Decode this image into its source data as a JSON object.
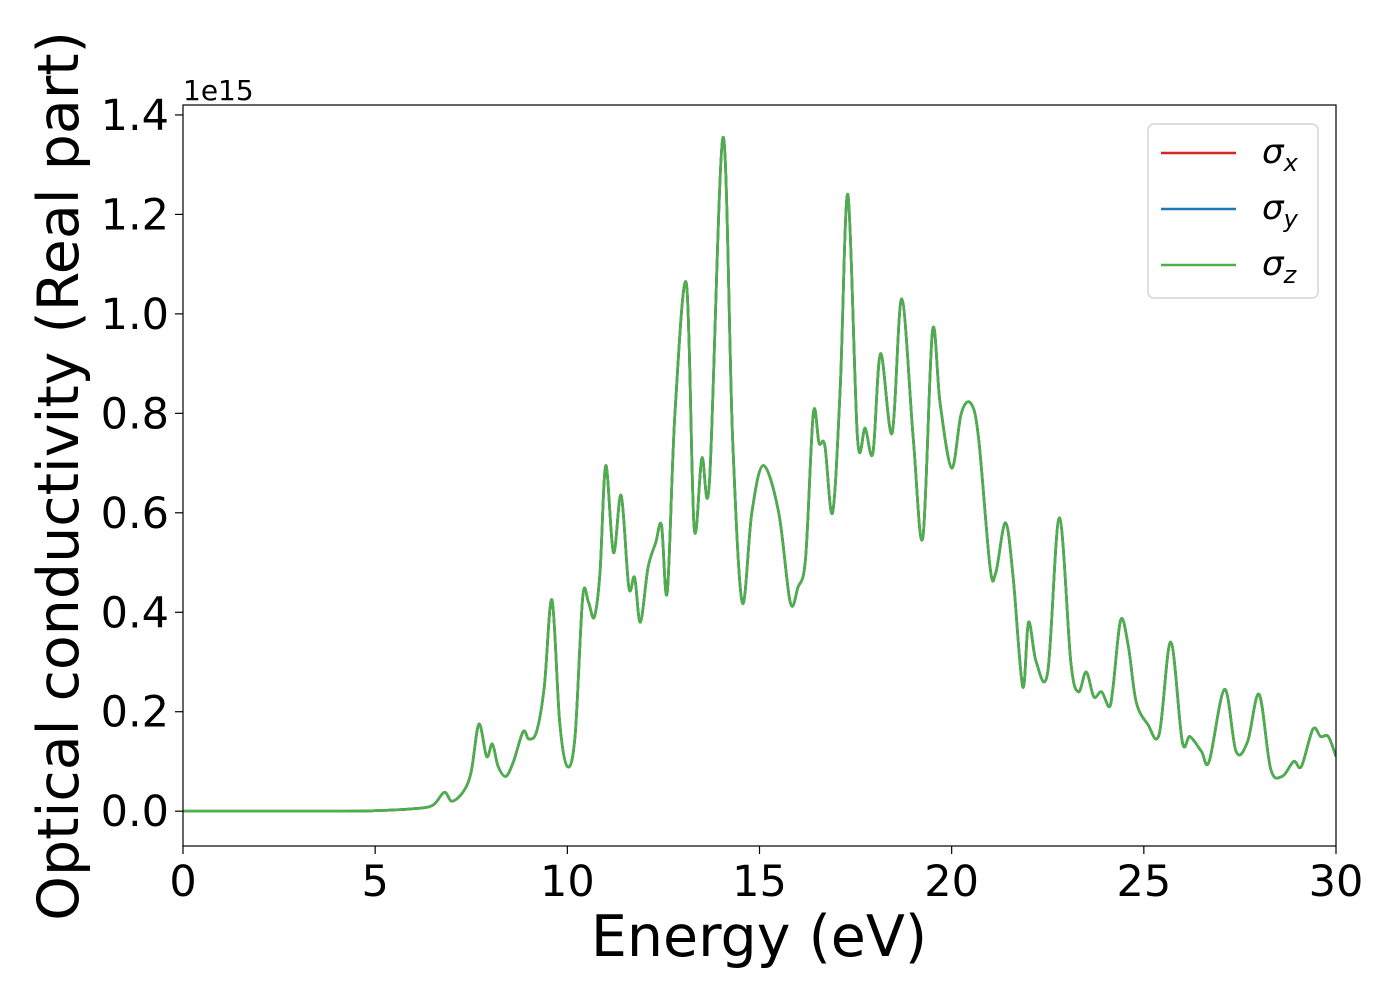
{
  "chart_data": {
    "type": "line",
    "title": "",
    "xlabel": "Energy (eV)",
    "ylabel": "Optical conductivity (Real part)",
    "offset_label": "1e15",
    "xlim": [
      0,
      30
    ],
    "ylim": [
      -0.07,
      1.42
    ],
    "xticks": [
      0,
      5,
      10,
      15,
      20,
      25,
      30
    ],
    "xtick_labels": [
      "0",
      "5",
      "10",
      "15",
      "20",
      "25",
      "30"
    ],
    "yticks": [
      0.0,
      0.2,
      0.4,
      0.6,
      0.8,
      1.0,
      1.2,
      1.4
    ],
    "ytick_labels": [
      "0.0",
      "0.2",
      "0.4",
      "0.6",
      "0.8",
      "1.0",
      "1.2",
      "1.4"
    ],
    "grid": false,
    "legend_position": "top-right",
    "x": [
      0,
      2,
      4,
      5,
      6,
      6.5,
      6.8,
      7.0,
      7.3,
      7.5,
      7.7,
      7.9,
      8.05,
      8.2,
      8.4,
      8.6,
      8.85,
      9.0,
      9.2,
      9.4,
      9.6,
      9.8,
      10.0,
      10.2,
      10.4,
      10.55,
      10.7,
      10.85,
      11.0,
      11.2,
      11.4,
      11.6,
      11.75,
      11.9,
      12.1,
      12.3,
      12.45,
      12.6,
      12.8,
      13.1,
      13.3,
      13.5,
      13.7,
      14.05,
      14.3,
      14.55,
      14.8,
      15.1,
      15.5,
      15.8,
      16.0,
      16.2,
      16.4,
      16.55,
      16.7,
      16.9,
      17.1,
      17.3,
      17.55,
      17.75,
      17.95,
      18.15,
      18.45,
      18.7,
      19.0,
      19.25,
      19.5,
      19.7,
      20.0,
      20.25,
      20.5,
      20.7,
      21.0,
      21.15,
      21.4,
      21.6,
      21.85,
      22.0,
      22.2,
      22.5,
      22.8,
      23.1,
      23.3,
      23.5,
      23.7,
      23.9,
      24.1,
      24.2,
      24.4,
      24.6,
      24.8,
      25.1,
      25.4,
      25.7,
      26.0,
      26.2,
      26.5,
      26.7,
      27.1,
      27.4,
      27.7,
      28.0,
      28.3,
      28.6,
      28.9,
      29.1,
      29.4,
      29.6,
      29.8,
      30.0
    ],
    "series": [
      {
        "name": "σ_x",
        "color": "#d62728",
        "values": [
          0,
          0,
          0,
          0.001,
          0.005,
          0.012,
          0.038,
          0.02,
          0.04,
          0.08,
          0.175,
          0.11,
          0.135,
          0.09,
          0.07,
          0.1,
          0.16,
          0.145,
          0.16,
          0.25,
          0.425,
          0.18,
          0.09,
          0.15,
          0.43,
          0.42,
          0.39,
          0.48,
          0.695,
          0.52,
          0.635,
          0.45,
          0.47,
          0.38,
          0.49,
          0.54,
          0.575,
          0.44,
          0.8,
          1.06,
          0.57,
          0.71,
          0.665,
          1.355,
          0.75,
          0.42,
          0.6,
          0.695,
          0.6,
          0.42,
          0.45,
          0.51,
          0.8,
          0.74,
          0.735,
          0.6,
          0.85,
          1.24,
          0.75,
          0.77,
          0.72,
          0.92,
          0.76,
          1.03,
          0.75,
          0.55,
          0.965,
          0.82,
          0.69,
          0.8,
          0.82,
          0.75,
          0.49,
          0.48,
          0.58,
          0.47,
          0.25,
          0.38,
          0.3,
          0.28,
          0.59,
          0.3,
          0.24,
          0.28,
          0.23,
          0.24,
          0.21,
          0.25,
          0.385,
          0.33,
          0.22,
          0.175,
          0.155,
          0.34,
          0.14,
          0.15,
          0.12,
          0.1,
          0.245,
          0.12,
          0.14,
          0.235,
          0.085,
          0.07,
          0.1,
          0.09,
          0.165,
          0.15,
          0.15,
          0.11
        ]
      },
      {
        "name": "σ_y",
        "color": "#1f77b4",
        "values": [
          0,
          0,
          0,
          0.001,
          0.005,
          0.012,
          0.038,
          0.02,
          0.04,
          0.08,
          0.175,
          0.11,
          0.135,
          0.09,
          0.07,
          0.1,
          0.16,
          0.145,
          0.16,
          0.25,
          0.425,
          0.18,
          0.09,
          0.15,
          0.43,
          0.42,
          0.39,
          0.48,
          0.695,
          0.52,
          0.635,
          0.45,
          0.47,
          0.38,
          0.49,
          0.54,
          0.575,
          0.44,
          0.8,
          1.06,
          0.57,
          0.71,
          0.665,
          1.355,
          0.75,
          0.42,
          0.6,
          0.695,
          0.6,
          0.42,
          0.45,
          0.51,
          0.8,
          0.74,
          0.735,
          0.6,
          0.85,
          1.24,
          0.75,
          0.77,
          0.72,
          0.92,
          0.76,
          1.03,
          0.75,
          0.55,
          0.965,
          0.82,
          0.69,
          0.8,
          0.82,
          0.75,
          0.49,
          0.48,
          0.58,
          0.47,
          0.25,
          0.38,
          0.3,
          0.28,
          0.59,
          0.3,
          0.24,
          0.28,
          0.23,
          0.24,
          0.21,
          0.25,
          0.385,
          0.33,
          0.22,
          0.175,
          0.155,
          0.34,
          0.14,
          0.15,
          0.12,
          0.1,
          0.245,
          0.12,
          0.14,
          0.235,
          0.085,
          0.07,
          0.1,
          0.09,
          0.165,
          0.15,
          0.15,
          0.11
        ]
      },
      {
        "name": "σ_z",
        "color": "#4daf4a",
        "values": [
          0,
          0,
          0,
          0.001,
          0.005,
          0.012,
          0.038,
          0.02,
          0.04,
          0.08,
          0.175,
          0.11,
          0.135,
          0.09,
          0.07,
          0.1,
          0.16,
          0.145,
          0.16,
          0.25,
          0.425,
          0.18,
          0.09,
          0.15,
          0.43,
          0.42,
          0.39,
          0.48,
          0.695,
          0.52,
          0.635,
          0.45,
          0.47,
          0.38,
          0.49,
          0.54,
          0.575,
          0.44,
          0.8,
          1.06,
          0.57,
          0.71,
          0.665,
          1.355,
          0.75,
          0.42,
          0.6,
          0.695,
          0.6,
          0.42,
          0.45,
          0.51,
          0.8,
          0.74,
          0.735,
          0.6,
          0.85,
          1.24,
          0.75,
          0.77,
          0.72,
          0.92,
          0.76,
          1.03,
          0.75,
          0.55,
          0.965,
          0.82,
          0.69,
          0.8,
          0.82,
          0.75,
          0.49,
          0.48,
          0.58,
          0.47,
          0.25,
          0.38,
          0.3,
          0.28,
          0.59,
          0.3,
          0.24,
          0.28,
          0.23,
          0.24,
          0.21,
          0.25,
          0.385,
          0.33,
          0.22,
          0.175,
          0.155,
          0.34,
          0.14,
          0.15,
          0.12,
          0.1,
          0.245,
          0.12,
          0.14,
          0.235,
          0.085,
          0.07,
          0.1,
          0.09,
          0.165,
          0.15,
          0.15,
          0.11
        ]
      }
    ]
  }
}
